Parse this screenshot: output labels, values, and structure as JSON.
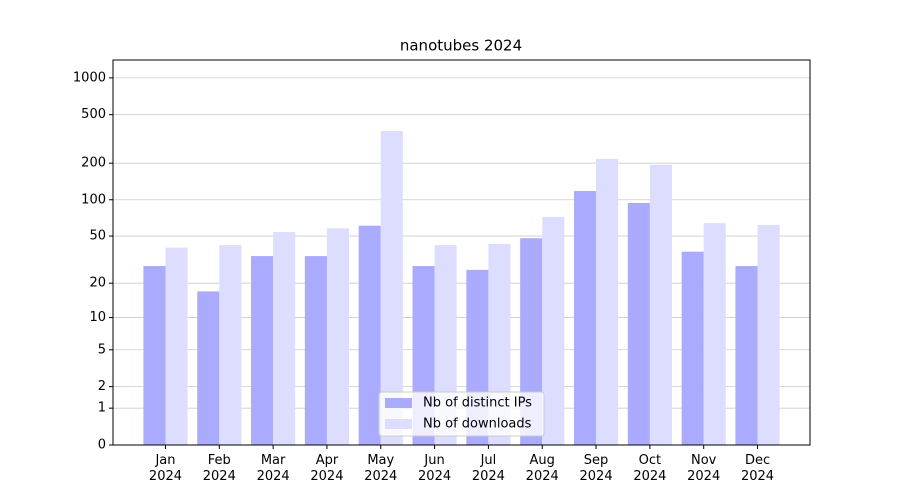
{
  "chart_data": {
    "type": "bar",
    "title": "nanotubes 2024",
    "categories": [
      "Jan\n2024",
      "Feb\n2024",
      "Mar\n2024",
      "Apr\n2024",
      "May\n2024",
      "Jun\n2024",
      "Jul\n2024",
      "Aug\n2024",
      "Sep\n2024",
      "Oct\n2024",
      "Nov\n2024",
      "Dec\n2024"
    ],
    "series": [
      {
        "name": "Nb of distinct IPs",
        "color": "#aaaaff",
        "values": [
          28,
          17,
          34,
          34,
          61,
          28,
          26,
          48,
          118,
          94,
          37,
          28
        ]
      },
      {
        "name": "Nb of downloads",
        "color": "#ddddff",
        "values": [
          40,
          42,
          54,
          58,
          368,
          42,
          43,
          72,
          217,
          194,
          64,
          62
        ]
      }
    ],
    "yscale": "log1p",
    "ylim": [
      0,
      1400
    ],
    "yticks": [
      0,
      1,
      2,
      5,
      10,
      20,
      50,
      100,
      200,
      500,
      1000
    ],
    "grid": true,
    "legend": "lower center"
  }
}
